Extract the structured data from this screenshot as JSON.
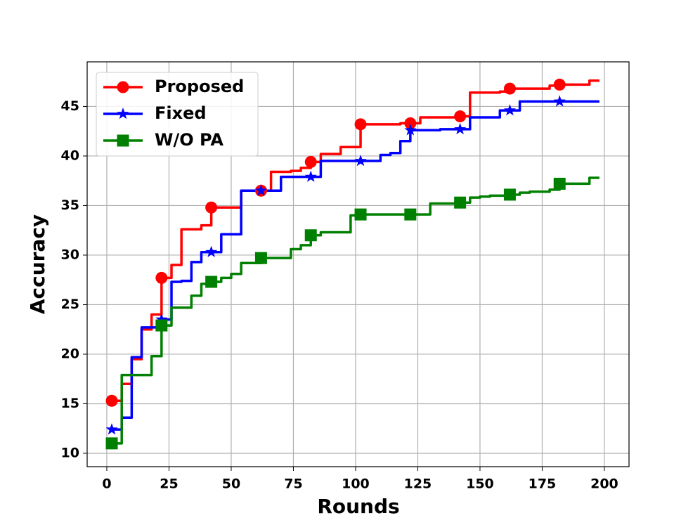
{
  "chart_data": {
    "type": "line",
    "xlabel": "Rounds",
    "ylabel": "Accuracy",
    "x": [
      2,
      6,
      10,
      14,
      18,
      22,
      26,
      30,
      34,
      38,
      42,
      46,
      50,
      54,
      58,
      62,
      66,
      70,
      74,
      78,
      82,
      86,
      90,
      94,
      98,
      102,
      106,
      110,
      114,
      118,
      122,
      126,
      130,
      134,
      138,
      142,
      146,
      150,
      154,
      158,
      162,
      166,
      170,
      174,
      178,
      182,
      186,
      190,
      194,
      198
    ],
    "drawstyle": "steps-post",
    "markevery": 5,
    "grid": true,
    "legend": "upper left",
    "xlim": [
      -7.9,
      209.9
    ],
    "xticks": [
      0,
      25,
      50,
      75,
      100,
      125,
      150,
      175,
      200
    ],
    "ylim": [
      8.65,
      49.5
    ],
    "yticks": [
      10,
      15,
      20,
      25,
      30,
      35,
      40,
      45
    ],
    "series": [
      {
        "name": "Proposed",
        "color": "#ff0000",
        "marker": "circle",
        "values": [
          15.3,
          17,
          19.5,
          22.5,
          24,
          27.7,
          29,
          32.6,
          32.6,
          33,
          34.8,
          34.8,
          34.8,
          36.5,
          36.5,
          36.5,
          38.4,
          38.4,
          38.5,
          38.8,
          39.4,
          40.2,
          40.2,
          40.9,
          40.9,
          43.2,
          43.2,
          43.2,
          43.2,
          43.3,
          43.3,
          43.9,
          43.9,
          43.9,
          43.9,
          44.0,
          46.4,
          46.4,
          46.4,
          46.5,
          46.8,
          46.8,
          46.8,
          46.8,
          47.1,
          47.2,
          47.2,
          47.2,
          47.6,
          47.6
        ]
      },
      {
        "name": "Fixed",
        "color": "#0000ff",
        "marker": "star",
        "values": [
          12.4,
          13.6,
          19.7,
          22.7,
          22.7,
          23.5,
          27.3,
          27.4,
          29.3,
          30.3,
          30.3,
          32.1,
          32.1,
          36.5,
          36.5,
          36.5,
          36.5,
          37.9,
          37.9,
          37.9,
          37.9,
          39.5,
          39.5,
          39.5,
          39.5,
          39.5,
          39.5,
          40.1,
          40.3,
          41.5,
          42.6,
          42.6,
          42.6,
          42.7,
          42.7,
          42.7,
          43.9,
          43.9,
          43.9,
          44.6,
          44.6,
          45.5,
          45.5,
          45.5,
          45.5,
          45.5,
          45.5,
          45.5,
          45.5,
          45.5
        ]
      },
      {
        "name": "W/O PA",
        "color": "#008000",
        "marker": "square",
        "values": [
          11.0,
          17.9,
          17.9,
          17.9,
          19.8,
          22.9,
          24.7,
          24.7,
          25.9,
          27.1,
          27.3,
          27.7,
          28.1,
          29.2,
          29.2,
          29.7,
          29.7,
          29.7,
          30.6,
          31.0,
          32.0,
          32.3,
          32.3,
          32.3,
          34.0,
          34.1,
          34.1,
          34.1,
          34.1,
          34.1,
          34.1,
          34.1,
          35.2,
          35.2,
          35.2,
          35.3,
          35.8,
          35.9,
          36.0,
          36.0,
          36.1,
          36.3,
          36.4,
          36.4,
          36.6,
          37.2,
          37.2,
          37.2,
          37.8,
          37.8
        ]
      }
    ]
  }
}
